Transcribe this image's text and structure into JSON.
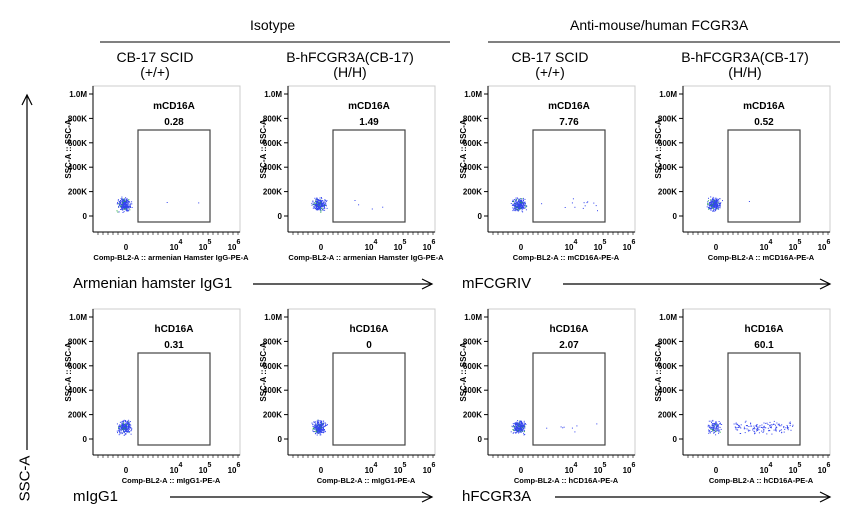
{
  "group_headers": [
    "Isotype",
    "Anti-mouse/human FCGR3A"
  ],
  "column_headers": [
    {
      "line1": "CB-17 SCID",
      "line2": "(+/+)"
    },
    {
      "line1": "B-hFCGR3A(CB-17)",
      "line2": "(H/H)"
    },
    {
      "line1": "CB-17 SCID",
      "line2": "(+/+)"
    },
    {
      "line1": "B-hFCGR3A(CB-17)",
      "line2": "(H/H)"
    }
  ],
  "row_labels": [
    "Armenian hamster IgG1",
    "mFCGRIV",
    "mIgG1",
    "hFCGR3A"
  ],
  "y_axis_label": "SSC-A",
  "chart_data": {
    "type": "scatter",
    "y_axis_title": "SSC-A :: SSC-A",
    "y_ticks": [
      "1.0M",
      "800K",
      "600K",
      "400K",
      "200K",
      "0"
    ],
    "x_ticks": [
      "0",
      "10",
      "10",
      "10"
    ],
    "x_tick_exponents": [
      "",
      "4",
      "5",
      "6"
    ],
    "plots": [
      {
        "gate": "mCD16A",
        "percent": "0.28",
        "x_title": "Comp-BL2-A :: armenian Hamster IgG-PE-A"
      },
      {
        "gate": "mCD16A",
        "percent": "1.49",
        "x_title": "Comp-BL2-A :: armenian Hamster IgG-PE-A"
      },
      {
        "gate": "mCD16A",
        "percent": "7.76",
        "x_title": "Comp-BL2-A :: mCD16A-PE-A"
      },
      {
        "gate": "mCD16A",
        "percent": "0.52",
        "x_title": "Comp-BL2-A :: mCD16A-PE-A"
      },
      {
        "gate": "hCD16A",
        "percent": "0.31",
        "x_title": "Comp-BL2-A :: mIgG1-PE-A"
      },
      {
        "gate": "hCD16A",
        "percent": "0",
        "x_title": "Comp-BL2-A :: mIgG1-PE-A"
      },
      {
        "gate": "hCD16A",
        "percent": "2.07",
        "x_title": "Comp-BL2-A :: hCD16A-PE-A"
      },
      {
        "gate": "hCD16A",
        "percent": "60.1",
        "x_title": "Comp-BL2-A :: hCD16A-PE-A"
      }
    ],
    "colors": {
      "dots": "#3344ee",
      "dense": "#22aa44"
    }
  }
}
